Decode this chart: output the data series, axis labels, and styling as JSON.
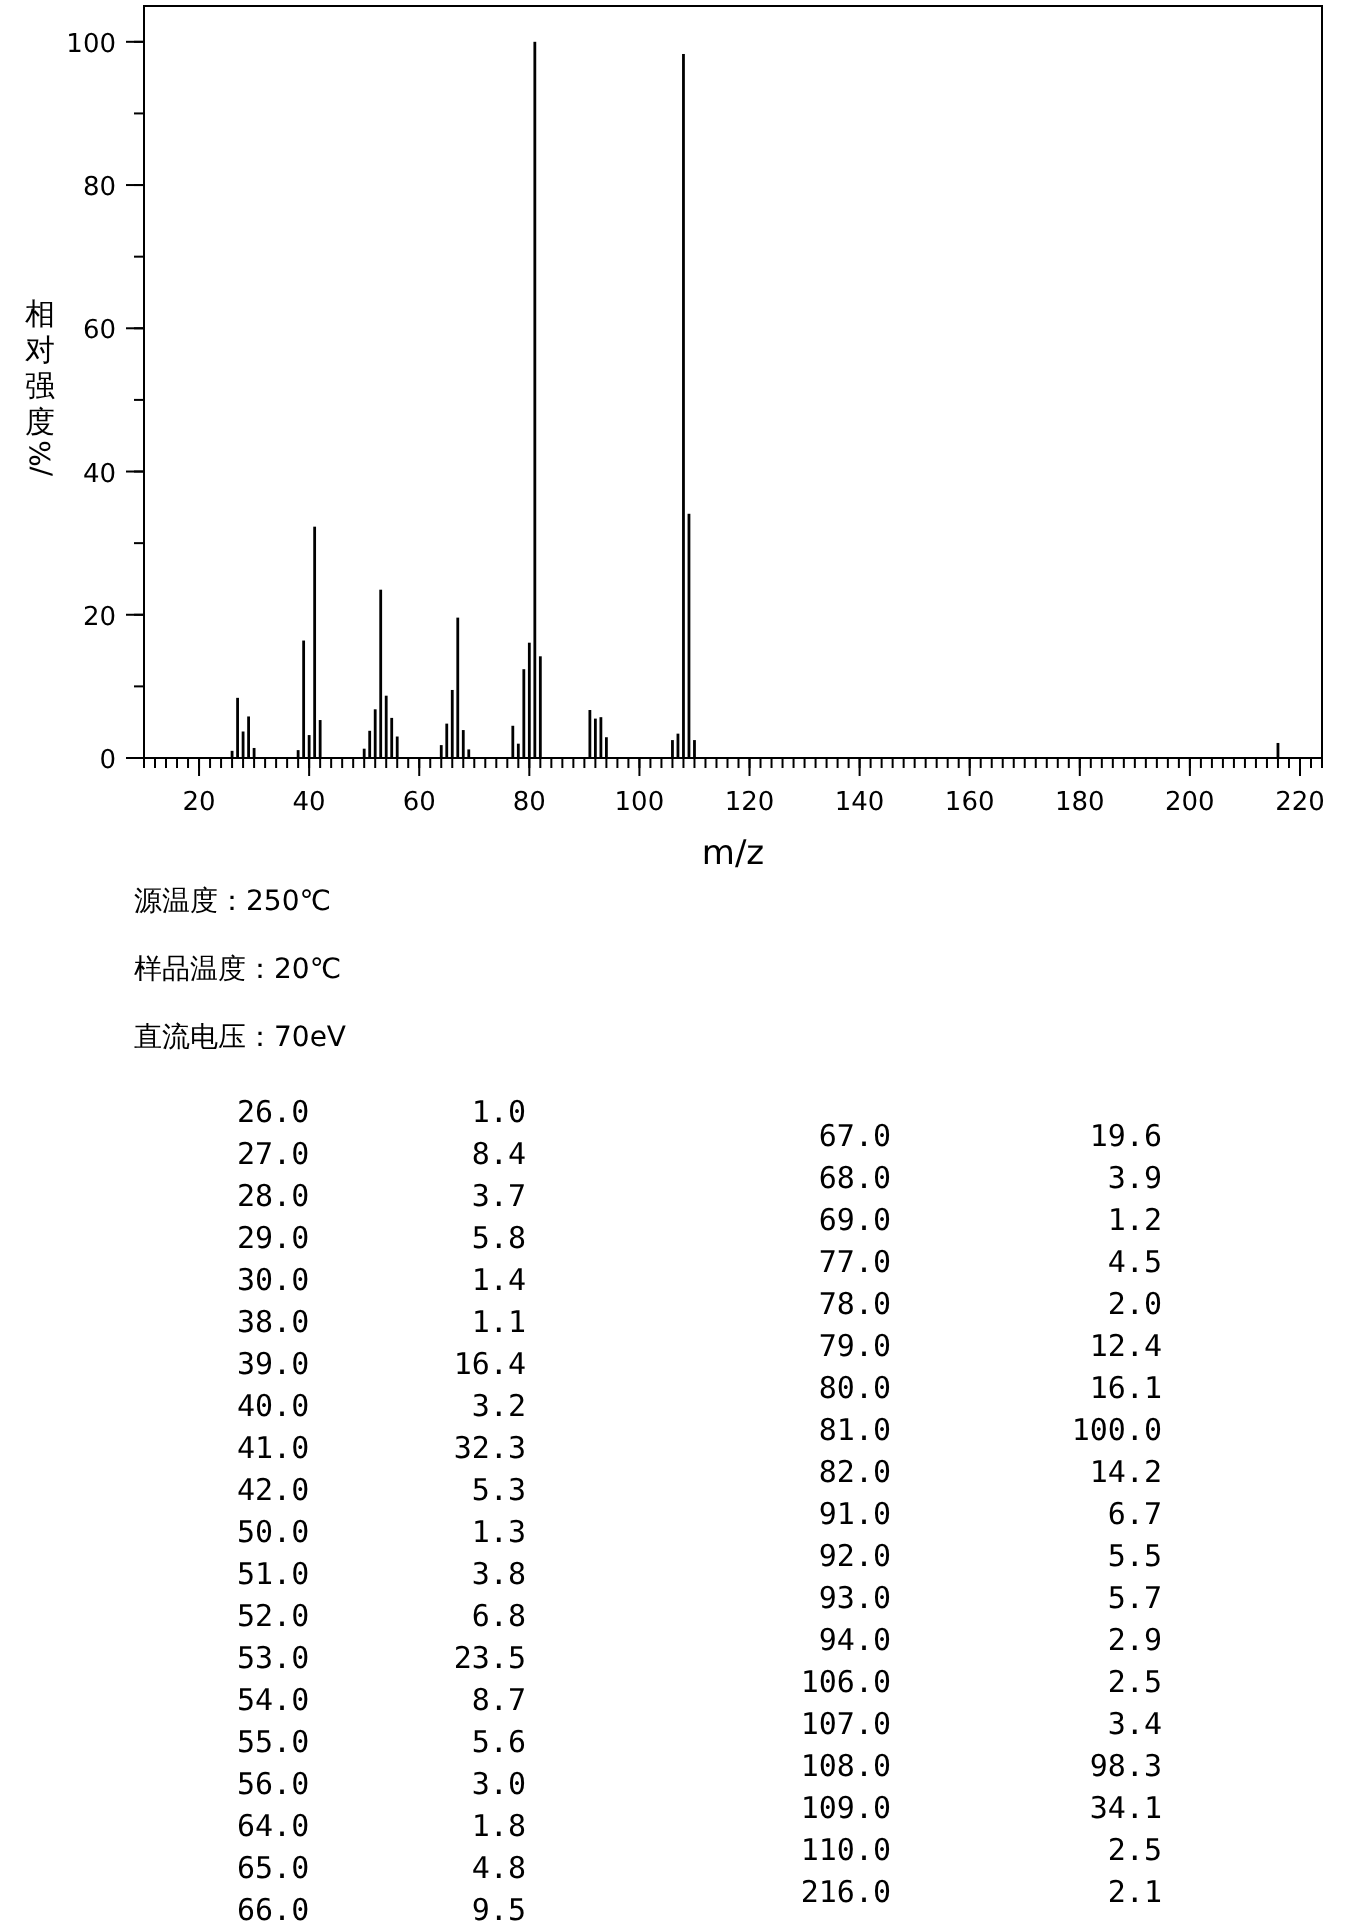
{
  "chart_data": {
    "type": "bar",
    "xlabel": "m/z",
    "ylabel": "相对强度/%",
    "x": [
      26,
      27,
      28,
      29,
      30,
      38,
      39,
      40,
      41,
      42,
      50,
      51,
      52,
      53,
      54,
      55,
      56,
      64,
      65,
      66,
      67,
      68,
      69,
      77,
      78,
      79,
      80,
      81,
      82,
      91,
      92,
      93,
      94,
      106,
      107,
      108,
      109,
      110,
      216
    ],
    "values": [
      1.0,
      8.4,
      3.7,
      5.8,
      1.4,
      1.1,
      16.4,
      3.2,
      32.3,
      5.3,
      1.3,
      3.8,
      6.8,
      23.5,
      8.7,
      5.6,
      3.0,
      1.8,
      4.8,
      9.5,
      19.6,
      3.9,
      1.2,
      4.5,
      2.0,
      12.4,
      16.1,
      100.0,
      14.2,
      6.7,
      5.5,
      5.7,
      2.9,
      2.5,
      3.4,
      98.3,
      34.1,
      2.5,
      2.1
    ],
    "color": "#000000",
    "xlim": [
      10,
      224
    ],
    "xticks": [
      20,
      40,
      60,
      80,
      100,
      120,
      140,
      160,
      180,
      200,
      220
    ],
    "ylim": [
      0,
      105
    ],
    "yticks": [
      0,
      20,
      40,
      60,
      80,
      100
    ],
    "annotations": [
      "源温度：250℃",
      "样品温度：20℃",
      "直流电压：70eV",
      "26.0         1.0",
      "27.0         8.4",
      "28.0         3.7",
      "29.0         5.8",
      "30.0         1.4",
      "38.0         1.1",
      "39.0        16.4",
      "40.0         3.2",
      "41.0        32.3",
      "42.0         5.3",
      "50.0         1.3",
      "51.0         3.8",
      "52.0         6.8",
      "53.0        23.5",
      "54.0         8.7",
      "55.0         5.6",
      "56.0         3.0",
      "64.0         1.8",
      "65.0         4.8",
      "66.0         9.5",
      "67.0           19.6",
      "68.0            3.9",
      "69.0            1.2",
      "77.0            4.5",
      "78.0            2.0",
      "79.0           12.4",
      "80.0           16.1",
      "81.0          100.0",
      "82.0           14.2",
      "91.0            6.7",
      "92.0            5.5",
      "93.0            5.7",
      "94.0            2.9",
      "106.0            2.5",
      "107.0            3.4",
      "108.0           98.3",
      "109.0           34.1",
      "110.0            2.5",
      "216.0            2.1"
    ]
  }
}
